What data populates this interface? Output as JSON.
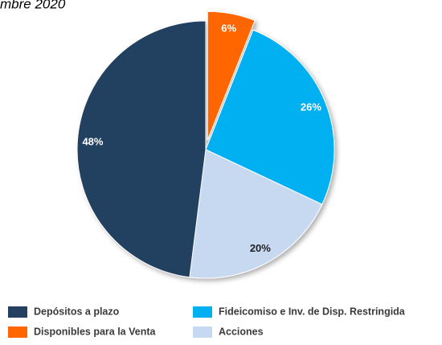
{
  "chart_data": {
    "type": "pie",
    "title": "mbre 2020",
    "categories": [
      "Disponibles para la Venta",
      "Fideicomiso e Inv. de Disp. Restringida",
      "Acciones",
      "Depósitos a plazo"
    ],
    "values": [
      6,
      26,
      20,
      48
    ],
    "value_labels": [
      "6%",
      "26%",
      "20%",
      "48%"
    ],
    "colors": [
      "#ff6600",
      "#00b0f0",
      "#c6d9f1",
      "#243f60"
    ],
    "label_colors": [
      "#ffffff",
      "#ffffff",
      "#1f1f1f",
      "#ffffff"
    ],
    "legend_order": [
      3,
      1,
      0,
      2
    ]
  }
}
